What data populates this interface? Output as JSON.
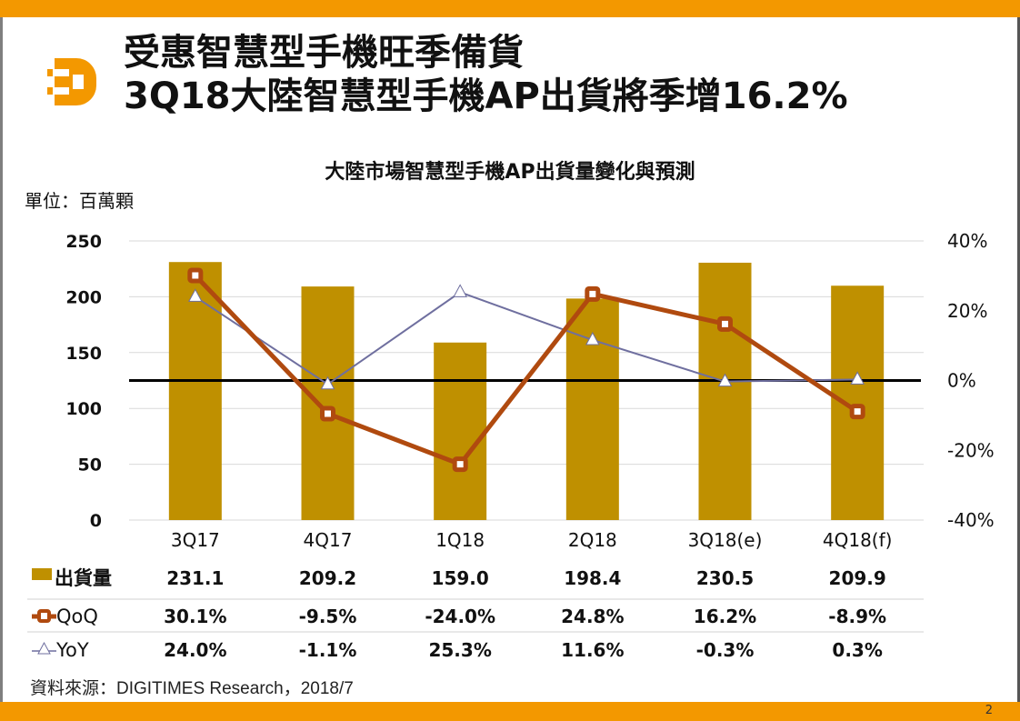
{
  "header": {
    "title_line1": "受惠智慧型手機旺季備貨",
    "title_line2": "3Q18大陸智慧型手機AP出貨將季增16.2%",
    "brand_color": "#f39800",
    "logo_icon": "digitimes-d-logo"
  },
  "page_number": "2",
  "source": "資料來源：DIGITIMES Research，2018/7",
  "chart_data": {
    "type": "bar",
    "title": "大陸市場智慧型手機AP出貨量變化與預測",
    "unit_label": "單位：百萬顆",
    "categories": [
      "3Q17",
      "4Q17",
      "1Q18",
      "2Q18",
      "3Q18(e)",
      "4Q18(f)"
    ],
    "y_left": {
      "range": [
        0,
        250
      ],
      "ticks": [
        "0",
        "50",
        "100",
        "150",
        "200",
        "250"
      ]
    },
    "y_right": {
      "range": [
        -40,
        40
      ],
      "ticks": [
        "-40%",
        "-20%",
        "0%",
        "20%",
        "40%"
      ]
    },
    "grid": true,
    "legend": "bottom-table",
    "series": [
      {
        "name": "出貨量",
        "type": "bar",
        "axis": "left",
        "color": "#bf9000",
        "values": [
          231.1,
          209.2,
          159.0,
          198.4,
          230.5,
          209.9
        ],
        "labels": [
          "231.1",
          "209.2",
          "159.0",
          "198.4",
          "230.5",
          "209.9"
        ]
      },
      {
        "name": "QoQ",
        "type": "line",
        "axis": "right",
        "color": "#b04a0f",
        "marker": "square",
        "values": [
          30.1,
          -9.5,
          -24.0,
          24.8,
          16.2,
          -8.9
        ],
        "labels": [
          "30.1%",
          "-9.5%",
          "-24.0%",
          "24.8%",
          "16.2%",
          "-8.9%"
        ]
      },
      {
        "name": "YoY",
        "type": "line",
        "axis": "right",
        "color": "#6f6f9f",
        "marker": "triangle",
        "values": [
          24.0,
          -1.1,
          25.3,
          11.6,
          -0.3,
          0.3
        ],
        "labels": [
          "24.0%",
          "-1.1%",
          "25.3%",
          "11.6%",
          "-0.3%",
          "0.3%"
        ]
      }
    ]
  }
}
